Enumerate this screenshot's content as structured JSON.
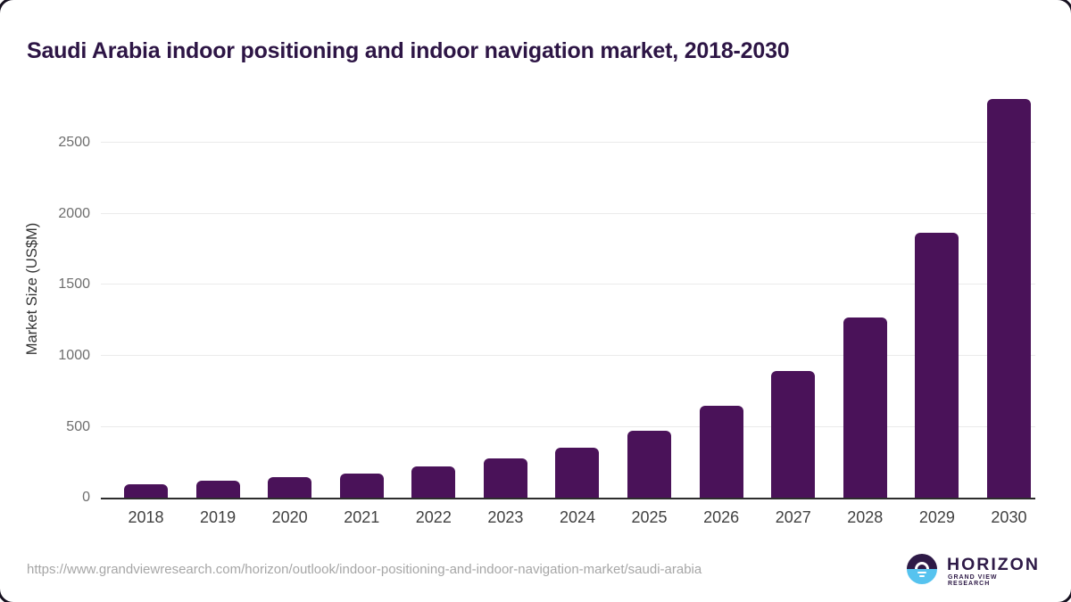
{
  "chart_data": {
    "type": "bar",
    "title": "Saudi Arabia indoor positioning and indoor navigation market, 2018-2030",
    "xlabel": "",
    "ylabel": "Market Size (US$M)",
    "categories": [
      "2018",
      "2019",
      "2020",
      "2021",
      "2022",
      "2023",
      "2024",
      "2025",
      "2026",
      "2027",
      "2028",
      "2029",
      "2030"
    ],
    "values": [
      94,
      118,
      143,
      173,
      218,
      277,
      354,
      472,
      645,
      890,
      1270,
      1865,
      2810
    ],
    "ylim": [
      0,
      2880
    ],
    "yticks": [
      0,
      500,
      1000,
      1500,
      2000,
      2500
    ],
    "grid": true,
    "legend": false,
    "bar_color": "#4a1259"
  },
  "footer": {
    "source_url": "https://www.grandviewresearch.com/horizon/outlook/indoor-positioning-and-indoor-navigation-market/saudi-arabia",
    "logo": {
      "brand": "HORIZON",
      "sub_brand": "GRAND VIEW RESEARCH"
    }
  },
  "colors": {
    "bar": "#4a1259",
    "title_text": "#2d1545",
    "axis_line": "#2d2d2d",
    "gridline": "#ebebeb",
    "y_tick_text": "#6e6e6e",
    "x_tick_text": "#414141",
    "url_text": "#a6a6a6",
    "logo_purple": "#2e1a47",
    "logo_blue": "#56c3ef"
  }
}
